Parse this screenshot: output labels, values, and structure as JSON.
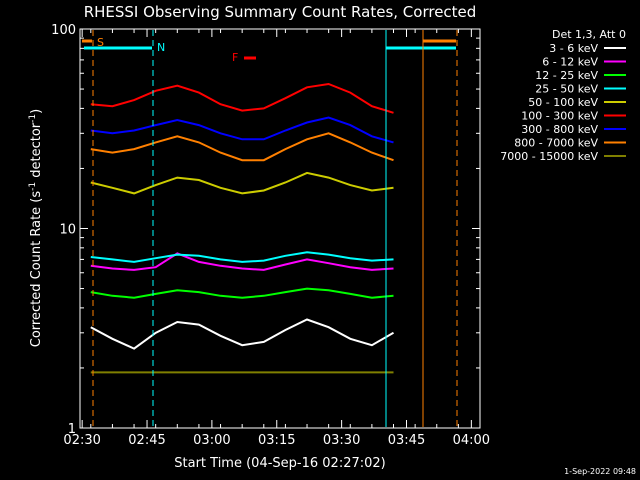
{
  "chart_data": {
    "type": "line",
    "title": "RHESSI Observing Summary Count Rates, Corrected",
    "xlabel": "Start Time (04-Sep-16 02:27:02)",
    "ylabel": "Corrected Count Rate (s",
    "ylabel_sup1": "-1",
    "ylabel_mid": " detector",
    "ylabel_sup2": "-1",
    "ylabel_end": ")",
    "yscale": "log",
    "ylim": [
      1,
      100
    ],
    "xlim_minutes": [
      2.5,
      95.0
    ],
    "x_ticks": [
      {
        "label": "02:30",
        "m": 3.0
      },
      {
        "label": "02:45",
        "m": 18.0
      },
      {
        "label": "03:00",
        "m": 33.0
      },
      {
        "label": "03:15",
        "m": 48.0
      },
      {
        "label": "03:30",
        "m": 63.0
      },
      {
        "label": "03:45",
        "m": 78.0
      },
      {
        "label": "04:00",
        "m": 93.0
      }
    ],
    "y_tick_labels": [
      {
        "label": "100",
        "v": 100
      },
      {
        "label": "10",
        "v": 10
      },
      {
        "label": "1",
        "v": 1
      }
    ],
    "legend_title": "Det 1,3, Att 0",
    "series": [
      {
        "name": "3 - 6 keV",
        "color": "#ffffff",
        "y": [
          3.2,
          2.8,
          2.5,
          3.0,
          3.4,
          3.3,
          2.9,
          2.6,
          2.7,
          3.1,
          3.5,
          3.2,
          2.8,
          2.6,
          3.0
        ]
      },
      {
        "name": "6 - 12 keV",
        "color": "#ff00ff",
        "y": [
          6.5,
          6.3,
          6.2,
          6.4,
          7.5,
          6.8,
          6.5,
          6.3,
          6.2,
          6.6,
          7.0,
          6.7,
          6.4,
          6.2,
          6.3
        ]
      },
      {
        "name": "12 - 25 keV",
        "color": "#00ff00",
        "y": [
          4.8,
          4.6,
          4.5,
          4.7,
          4.9,
          4.8,
          4.6,
          4.5,
          4.6,
          4.8,
          5.0,
          4.9,
          4.7,
          4.5,
          4.6
        ]
      },
      {
        "name": "25 - 50 keV",
        "color": "#00ffff",
        "y": [
          7.2,
          7.0,
          6.8,
          7.1,
          7.4,
          7.3,
          7.0,
          6.8,
          6.9,
          7.3,
          7.6,
          7.4,
          7.1,
          6.9,
          7.0
        ]
      },
      {
        "name": "50 - 100 keV",
        "color": "#cccc00",
        "y": [
          17,
          16,
          15,
          16.5,
          18,
          17.5,
          16,
          15,
          15.5,
          17,
          19,
          18,
          16.5,
          15.5,
          16
        ]
      },
      {
        "name": "100 - 300 keV",
        "color": "#ff0000",
        "y": [
          42,
          41,
          44,
          49,
          52,
          48,
          42,
          39,
          40,
          45,
          51,
          53,
          48,
          41,
          38
        ]
      },
      {
        "name": "300 - 800 keV",
        "color": "#0000ff",
        "y": [
          31,
          30,
          31,
          33,
          35,
          33,
          30,
          28,
          28,
          31,
          34,
          36,
          33,
          29,
          27
        ]
      },
      {
        "name": "800 - 7000 keV",
        "color": "#ff8000",
        "y": [
          25,
          24,
          25,
          27,
          29,
          27,
          24,
          22,
          22,
          25,
          28,
          30,
          27,
          24,
          22
        ]
      },
      {
        "name": "7000 - 15000 keV",
        "color": "#808000",
        "y": [
          1.9,
          1.9,
          1.9,
          1.9,
          1.9,
          1.9,
          1.9,
          1.9,
          1.9,
          1.9,
          1.9,
          1.9,
          1.9,
          1.9,
          1.9
        ]
      }
    ],
    "x_points": [
      5,
      10,
      15,
      20,
      25,
      30,
      35,
      40,
      45,
      50,
      55,
      60,
      65,
      70,
      75
    ],
    "annotations": [
      {
        "label": "S",
        "color": "#ff8000"
      },
      {
        "label": "N",
        "color": "#00ffff"
      },
      {
        "label": "F",
        "color": "#ff0000"
      }
    ],
    "grid": false,
    "legend_position": "right"
  },
  "timestamp": "1-Sep-2022 09:48"
}
